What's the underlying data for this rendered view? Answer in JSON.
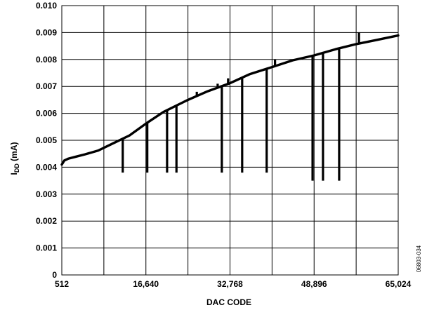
{
  "chart_data": {
    "type": "line",
    "xlabel": "DAC CODE",
    "ylabel": {
      "base": "I",
      "subscript": "DD",
      "unit": " (mA)"
    },
    "figure_id": "06803-034",
    "xlim": [
      512,
      65024
    ],
    "ylim": [
      0,
      0.01
    ],
    "x_ticks": [
      {
        "value": 512,
        "label": "512"
      },
      {
        "value": 16640,
        "label": "16,640"
      },
      {
        "value": 32768,
        "label": "32,768"
      },
      {
        "value": 48896,
        "label": "48,896"
      },
      {
        "value": 65024,
        "label": "65,024"
      }
    ],
    "x_gridlines": [
      512,
      8576,
      16640,
      24704,
      32768,
      40832,
      48896,
      56960,
      65024
    ],
    "y_ticks": [
      {
        "value": 0,
        "label": "0"
      },
      {
        "value": 0.001,
        "label": "0.001"
      },
      {
        "value": 0.002,
        "label": "0.002"
      },
      {
        "value": 0.003,
        "label": "0.003"
      },
      {
        "value": 0.004,
        "label": "0.004"
      },
      {
        "value": 0.005,
        "label": "0.005"
      },
      {
        "value": 0.006,
        "label": "0.006"
      },
      {
        "value": 0.007,
        "label": "0.007"
      },
      {
        "value": 0.008,
        "label": "0.008"
      },
      {
        "value": 0.009,
        "label": "0.009"
      },
      {
        "value": 0.01,
        "label": "0.010"
      }
    ],
    "grid": true,
    "series": [
      {
        "x": [
          512,
          1000,
          1800,
          3000,
          5000,
          7500,
          10500,
          13500,
          16640,
          20000,
          24704,
          28500,
          32768,
          36500,
          40832,
          44800,
          48896,
          53000,
          56960,
          61000,
          65024
        ],
        "y": [
          0.0041,
          0.00425,
          0.00432,
          0.00438,
          0.00448,
          0.00462,
          0.0049,
          0.00518,
          0.00562,
          0.00605,
          0.0065,
          0.00682,
          0.00712,
          0.00745,
          0.00772,
          0.00797,
          0.00815,
          0.00838,
          0.00857,
          0.00873,
          0.00889
        ]
      }
    ],
    "spikes": [
      {
        "x": 12200,
        "to": 0.0038
      },
      {
        "x": 16900,
        "to": 0.0038
      },
      {
        "x": 20700,
        "to": 0.0038
      },
      {
        "x": 22500,
        "to": 0.0038
      },
      {
        "x": 26400,
        "to": 0.0068
      },
      {
        "x": 30400,
        "to": 0.0071
      },
      {
        "x": 31200,
        "to": 0.0038
      },
      {
        "x": 32400,
        "to": 0.0073
      },
      {
        "x": 35100,
        "to": 0.0038
      },
      {
        "x": 39800,
        "to": 0.0038
      },
      {
        "x": 41400,
        "to": 0.008
      },
      {
        "x": 48600,
        "to": 0.0035
      },
      {
        "x": 50600,
        "to": 0.0035
      },
      {
        "x": 53700,
        "to": 0.0035
      },
      {
        "x": 57500,
        "to": 0.009
      }
    ]
  }
}
